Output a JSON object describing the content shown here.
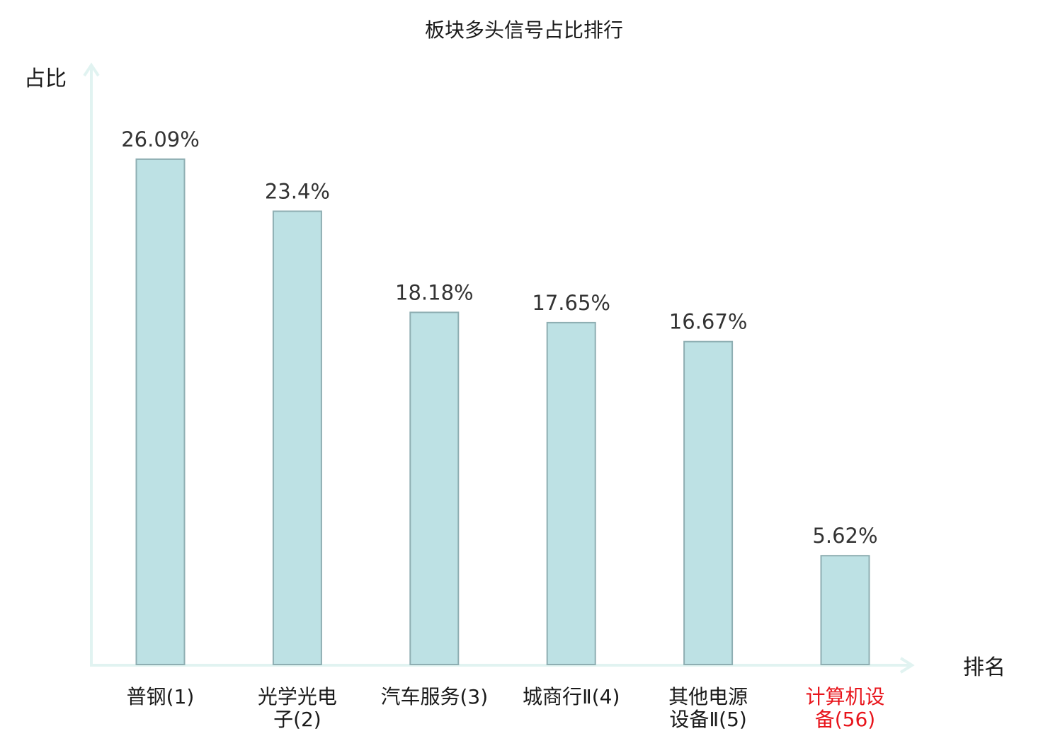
{
  "chart_data": {
    "type": "bar",
    "title": "板块多头信号占比排行",
    "xlabel": "排名",
    "ylabel": "占比",
    "categories": [
      [
        "普钢(1)"
      ],
      [
        "光学光电",
        "子(2)"
      ],
      [
        "汽车服务(3)"
      ],
      [
        "城商行Ⅱ(4)"
      ],
      [
        "其他电源",
        "设备Ⅱ(5)"
      ],
      [
        "计算机设",
        "备(56)"
      ]
    ],
    "values": [
      26.09,
      23.4,
      18.18,
      17.65,
      16.67,
      5.62
    ],
    "value_labels": [
      "26.09%",
      "23.4%",
      "18.18%",
      "17.65%",
      "16.67%",
      "5.62%"
    ],
    "highlight_index": 5,
    "ylim": [
      0,
      29.3
    ],
    "grid": false,
    "legend": "none",
    "colors": {
      "bar_fill": "#bde1e4",
      "bar_stroke": "#8eaeb2",
      "axis": "#e1f3f1",
      "highlight_text": "#e8141b",
      "text": "#1a1a1a",
      "value_text": "#333333"
    }
  }
}
